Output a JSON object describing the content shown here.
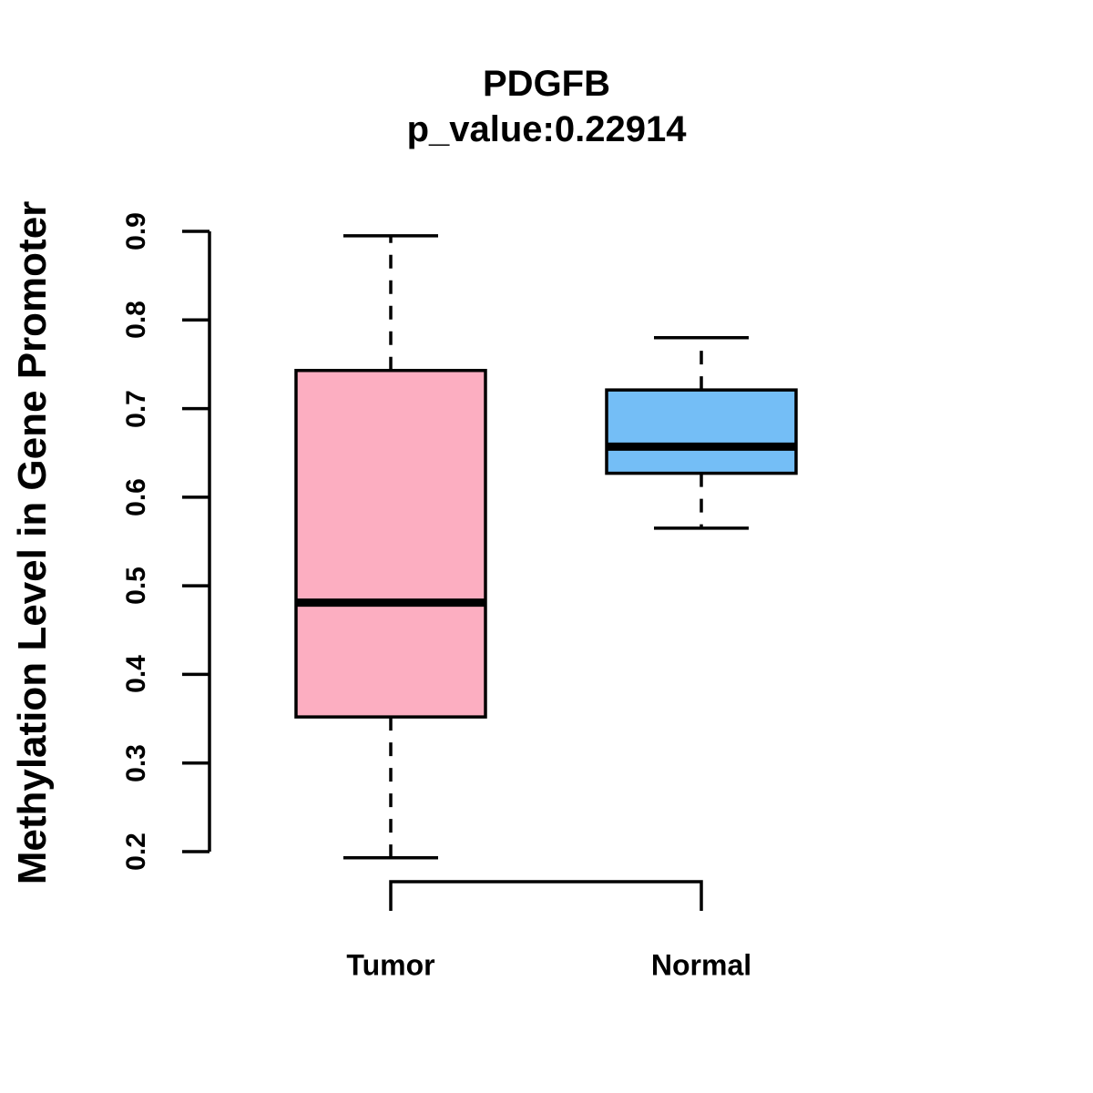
{
  "title": "PDGFB",
  "subtitle": "p_value:0.22914",
  "chart_data": {
    "type": "boxplot",
    "title": "PDGFB",
    "subtitle": "p_value:0.22914",
    "ylabel": "Methylation Level in Gene Promoter",
    "xlabel": "",
    "ylim": [
      0.2,
      0.9
    ],
    "ytick_labels": [
      "0.2",
      "0.3",
      "0.4",
      "0.5",
      "0.6",
      "0.7",
      "0.8",
      "0.9"
    ],
    "grid": "off",
    "legend": "none",
    "categories": [
      "Tumor",
      "Normal"
    ],
    "series": [
      {
        "name": "Tumor",
        "box_color": "#FCAEC1",
        "whisker_low": 0.193,
        "q1": 0.352,
        "median": 0.481,
        "q3": 0.743,
        "whisker_high": 0.895
      },
      {
        "name": "Normal",
        "box_color": "#74BEF6",
        "whisker_low": 0.565,
        "q1": 0.627,
        "median": 0.657,
        "q3": 0.721,
        "whisker_high": 0.78
      }
    ],
    "line_color": "#000000"
  }
}
